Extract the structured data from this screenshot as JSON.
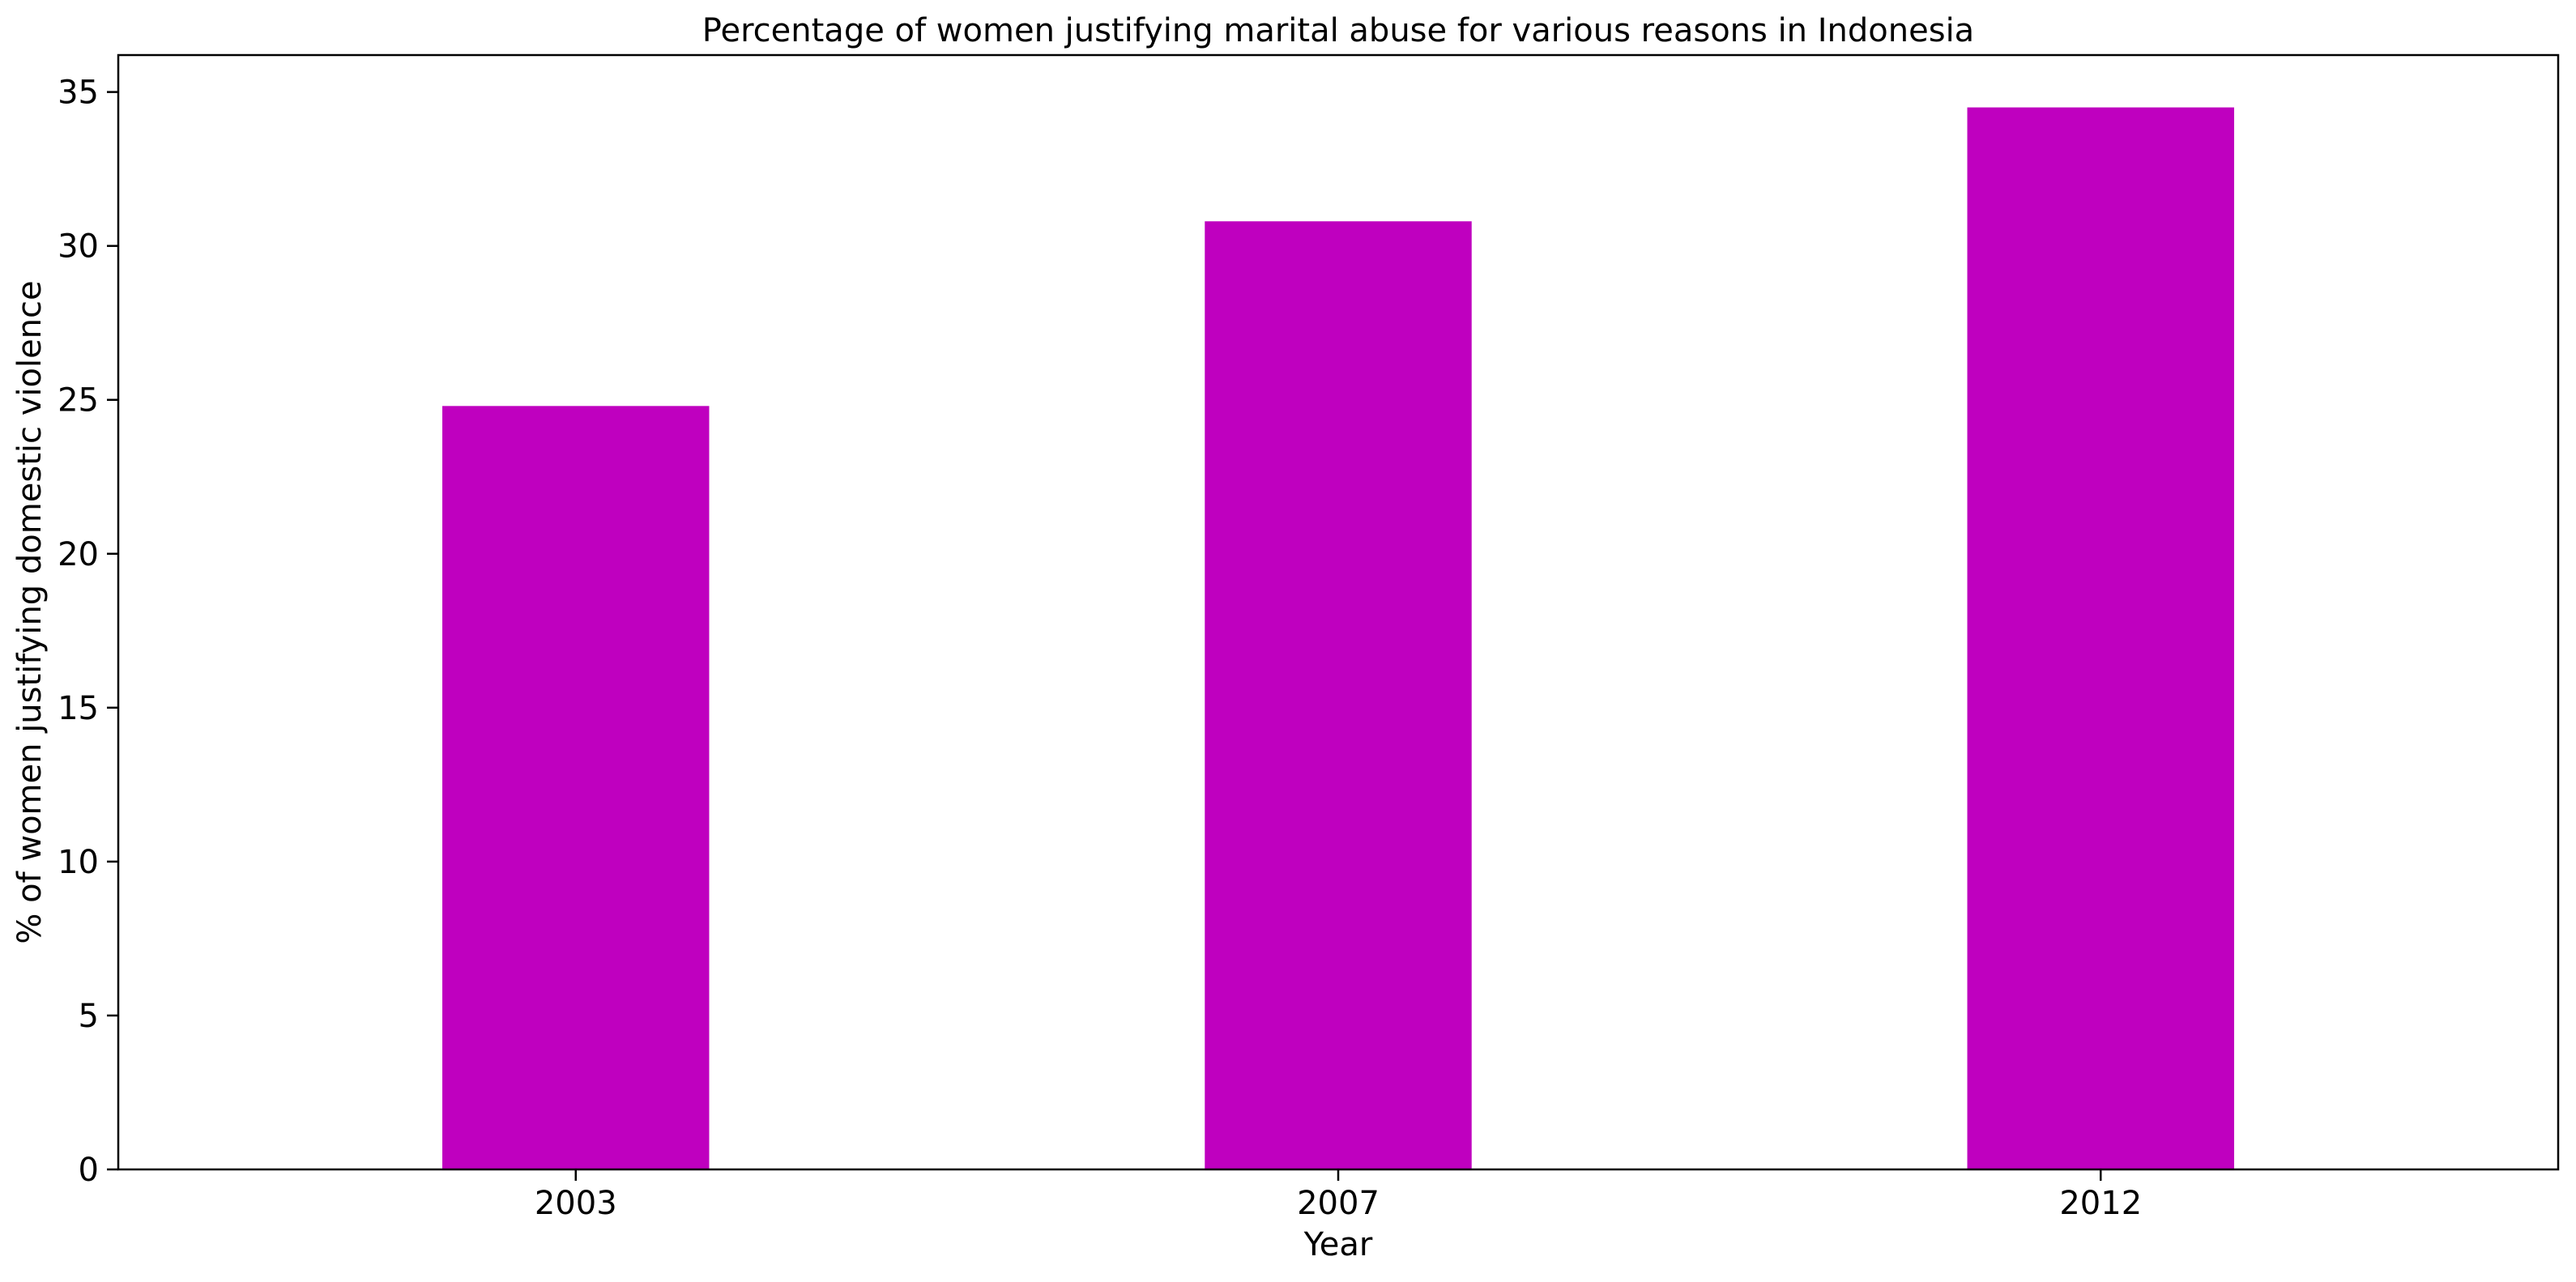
{
  "chart_data": {
    "type": "bar",
    "title": "Percentage of women justifying marital abuse for various reasons in Indonesia",
    "xlabel": "Year",
    "ylabel": "% of women justifying domestic violence",
    "categories": [
      "2003",
      "2007",
      "2012"
    ],
    "values": [
      24.8,
      30.8,
      34.5
    ],
    "ylim": [
      0,
      36.2
    ],
    "yticks": [
      0,
      5,
      10,
      15,
      20,
      25,
      30,
      35
    ],
    "ytick_labels": [
      "0",
      "5",
      "10",
      "15",
      "20",
      "25",
      "30",
      "35"
    ],
    "grid": false,
    "legend": "none",
    "bar_color": "#bf00bf"
  }
}
